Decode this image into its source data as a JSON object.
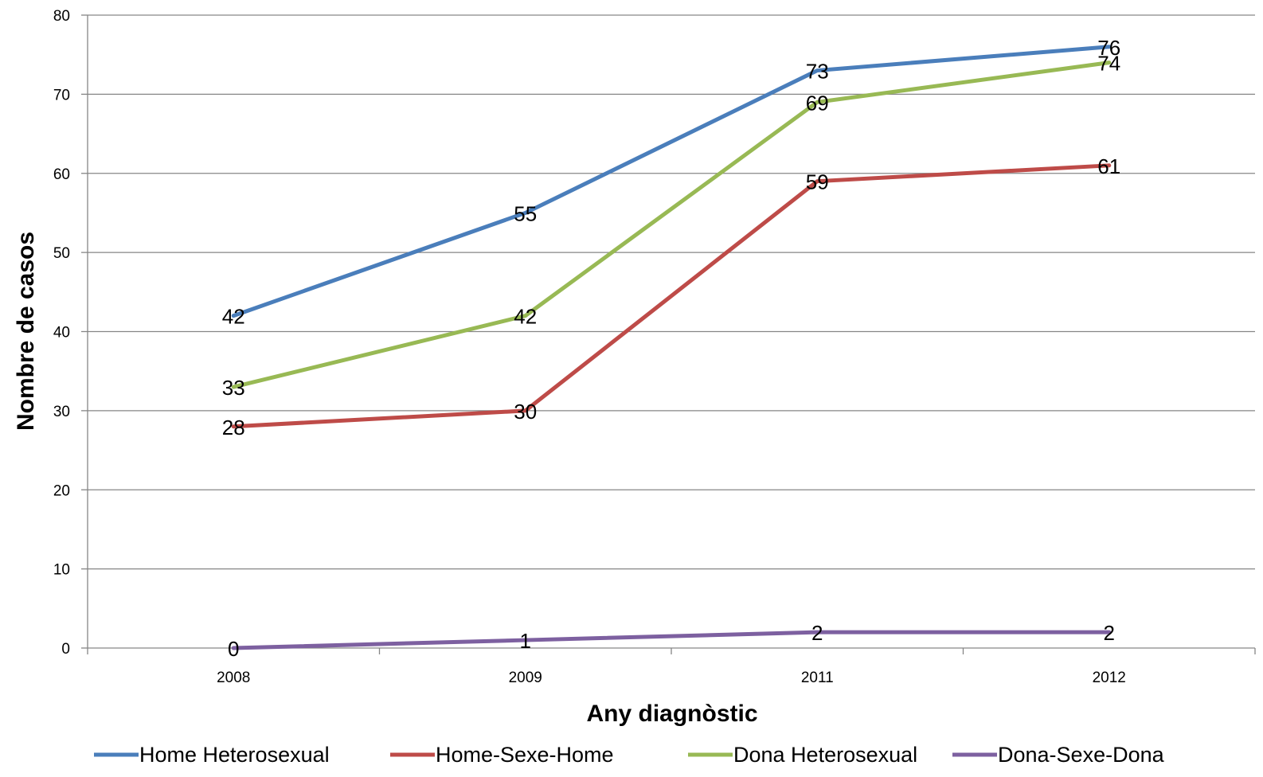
{
  "chart_data": {
    "type": "line",
    "categories": [
      "2008",
      "2009",
      "2011",
      "2012"
    ],
    "series": [
      {
        "name": "Home Heterosexual",
        "values": [
          42,
          55,
          73,
          76
        ],
        "color": "#4a7ebb"
      },
      {
        "name": "Home-Sexe-Home",
        "values": [
          28,
          30,
          59,
          61
        ],
        "color": "#be4b48"
      },
      {
        "name": "Dona Heterosexual",
        "values": [
          33,
          42,
          69,
          74
        ],
        "color": "#98b954"
      },
      {
        "name": "Dona-Sexe-Dona",
        "values": [
          0,
          1,
          2,
          2
        ],
        "color": "#7d60a0"
      }
    ],
    "xlabel": "Any diagnòstic",
    "ylabel": "Nombre de casos",
    "ylim": [
      0,
      80
    ],
    "yticks": [
      0,
      10,
      20,
      30,
      40,
      50,
      60,
      70,
      80
    ],
    "grid": true,
    "legend": "bottom",
    "data_labels": true
  }
}
